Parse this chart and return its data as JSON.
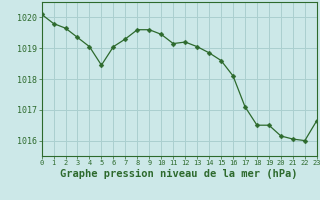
{
  "x": [
    0,
    1,
    2,
    3,
    4,
    5,
    6,
    7,
    8,
    9,
    10,
    11,
    12,
    13,
    14,
    15,
    16,
    17,
    18,
    19,
    20,
    21,
    22,
    23
  ],
  "y": [
    1020.1,
    1019.8,
    1019.65,
    1019.35,
    1019.05,
    1018.45,
    1019.05,
    1019.3,
    1019.6,
    1019.6,
    1019.45,
    1019.15,
    1019.2,
    1019.05,
    1018.85,
    1018.6,
    1018.1,
    1017.1,
    1016.5,
    1016.5,
    1016.15,
    1016.05,
    1016.0,
    1016.65
  ],
  "line_color": "#2d6a2d",
  "marker": "D",
  "marker_size": 2.5,
  "background_color": "#cce8e8",
  "grid_color": "#aacfcf",
  "xlabel": "Graphe pression niveau de la mer (hPa)",
  "xlabel_fontsize": 7.5,
  "tick_label_color": "#2d6a2d",
  "axis_label_color": "#2d6a2d",
  "ylim": [
    1015.5,
    1020.5
  ],
  "yticks": [
    1016,
    1017,
    1018,
    1019,
    1020
  ],
  "xticks": [
    0,
    1,
    2,
    3,
    4,
    5,
    6,
    7,
    8,
    9,
    10,
    11,
    12,
    13,
    14,
    15,
    16,
    17,
    18,
    19,
    20,
    21,
    22,
    23
  ]
}
